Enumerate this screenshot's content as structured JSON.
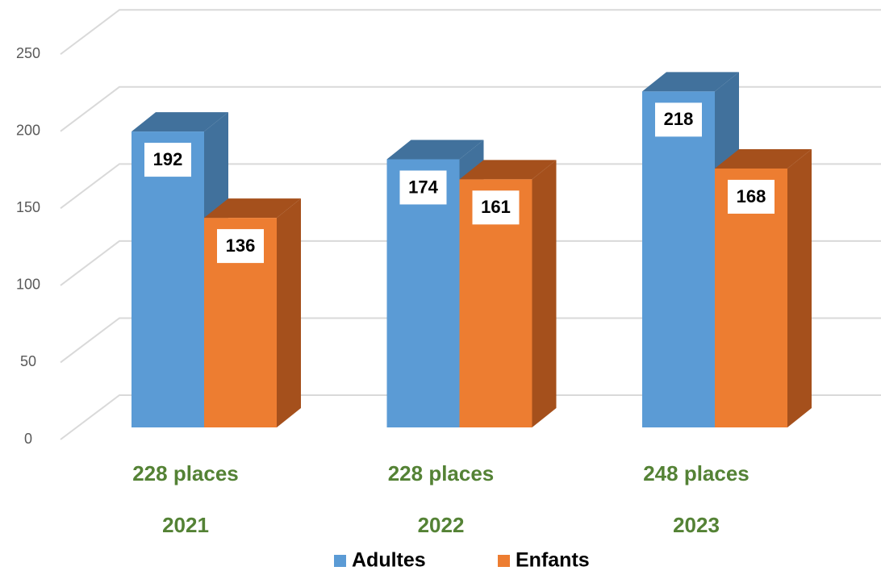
{
  "chart_data": {
    "type": "bar3d",
    "categories": [
      "2021",
      "2022",
      "2023"
    ],
    "annotations": [
      "228 places",
      "228 places",
      "248 places"
    ],
    "series": [
      {
        "name": "Adultes",
        "color": "#5b9bd5",
        "side_color": "#41719c",
        "values": [
          192,
          174,
          218
        ]
      },
      {
        "name": "Enfants",
        "color": "#ed7d31",
        "side_color": "#a5501c",
        "values": [
          136,
          161,
          168
        ]
      }
    ],
    "ylim": [
      0,
      300
    ],
    "yticks": [
      0,
      50,
      100,
      150,
      200,
      250
    ],
    "grid": true,
    "legend": "bottom"
  }
}
